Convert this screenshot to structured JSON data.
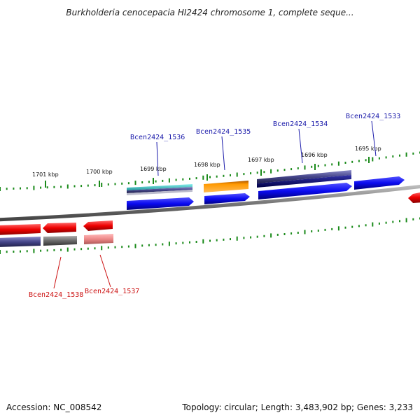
{
  "title": "Burkholderia cenocepacia HI2424 chromosome 1, complete seque...",
  "accession_text": "Accession: NC_008542",
  "stats_text": "Topology: circular; Length: 3,483,902 bp; Genes: 3,233",
  "ticks": [
    "1701 kbp",
    "1700 kbp",
    "1699 kbp",
    "1698 kbp",
    "1697 kbp",
    "1696 kbp",
    "1695 kbp"
  ],
  "genes_top": [
    "Bcen2424_1536",
    "Bcen2424_1535",
    "Bcen2424_1534",
    "Bcen2424_1533"
  ],
  "genes_bottom": [
    "Bcen2424_1538",
    "Bcen2424_1537"
  ],
  "colors": {
    "forward_cds": "#1010ee",
    "reverse_cds": "#ee1111",
    "label_forward": "#1a1aaa",
    "label_reverse": "#cc1111",
    "tick": "#1a8a1a",
    "backbone": "#888888",
    "orange_feature": "#ff9900",
    "teal_feature": "#33bbbb",
    "slate_feature": "#4a4a8a",
    "grey_feature": "#777777",
    "pink_feature": "#ee8888"
  }
}
